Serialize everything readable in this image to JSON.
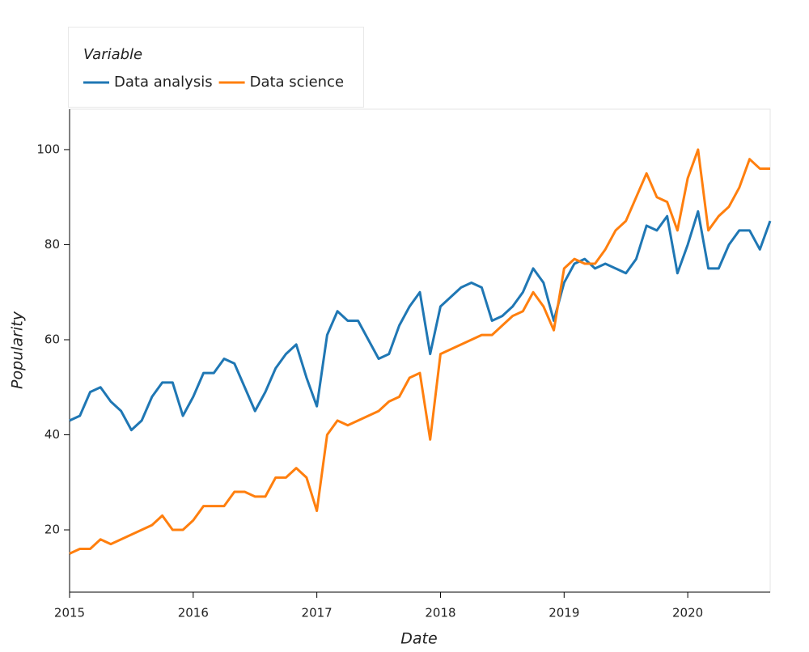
{
  "chart_data": {
    "type": "line",
    "xlabel": "Date",
    "ylabel": "Popularity",
    "legend_title": "Variable",
    "legend": "top-left",
    "x": [
      "2015-01",
      "2015-02",
      "2015-03",
      "2015-04",
      "2015-05",
      "2015-06",
      "2015-07",
      "2015-08",
      "2015-09",
      "2015-10",
      "2015-11",
      "2015-12",
      "2016-01",
      "2016-02",
      "2016-03",
      "2016-04",
      "2016-05",
      "2016-06",
      "2016-07",
      "2016-08",
      "2016-09",
      "2016-10",
      "2016-11",
      "2016-12",
      "2017-01",
      "2017-02",
      "2017-03",
      "2017-04",
      "2017-05",
      "2017-06",
      "2017-07",
      "2017-08",
      "2017-09",
      "2017-10",
      "2017-11",
      "2017-12",
      "2018-01",
      "2018-02",
      "2018-03",
      "2018-04",
      "2018-05",
      "2018-06",
      "2018-07",
      "2018-08",
      "2018-09",
      "2018-10",
      "2018-11",
      "2018-12",
      "2019-01",
      "2019-02",
      "2019-03",
      "2019-04",
      "2019-05",
      "2019-06",
      "2019-07",
      "2019-08",
      "2019-09",
      "2019-10",
      "2019-11",
      "2019-12",
      "2020-01",
      "2020-02",
      "2020-03",
      "2020-04",
      "2020-05",
      "2020-06",
      "2020-07",
      "2020-08",
      "2020-09"
    ],
    "series": [
      {
        "name": "Data analysis",
        "color": "#1f77b4",
        "values": [
          43,
          44,
          49,
          50,
          47,
          45,
          41,
          43,
          48,
          51,
          51,
          44,
          48,
          53,
          53,
          56,
          55,
          50,
          45,
          49,
          54,
          57,
          59,
          52,
          46,
          61,
          66,
          64,
          64,
          60,
          56,
          57,
          63,
          67,
          70,
          57,
          67,
          69,
          71,
          72,
          71,
          64,
          65,
          67,
          70,
          75,
          72,
          64,
          72,
          76,
          77,
          75,
          76,
          75,
          74,
          77,
          84,
          83,
          86,
          74,
          80,
          87,
          75,
          75,
          80,
          83,
          83,
          79,
          85
        ]
      },
      {
        "name": "Data science",
        "color": "#ff7f0e",
        "values": [
          15,
          16,
          16,
          18,
          17,
          18,
          19,
          20,
          21,
          23,
          20,
          20,
          22,
          25,
          25,
          25,
          28,
          28,
          27,
          27,
          31,
          31,
          33,
          31,
          24,
          40,
          43,
          42,
          43,
          44,
          45,
          47,
          48,
          52,
          53,
          39,
          57,
          58,
          59,
          60,
          61,
          61,
          63,
          65,
          66,
          70,
          67,
          62,
          75,
          77,
          76,
          76,
          79,
          83,
          85,
          90,
          95,
          90,
          89,
          83,
          94,
          100,
          83,
          86,
          88,
          92,
          98,
          96,
          96
        ]
      }
    ],
    "xlim": [
      "2015-01",
      "2020-09"
    ],
    "xticks": [
      2015,
      2016,
      2017,
      2018,
      2019,
      2020
    ],
    "ylim": [
      6.9,
      108.5
    ],
    "yticks": [
      20,
      40,
      60,
      80,
      100
    ],
    "grid": false
  }
}
